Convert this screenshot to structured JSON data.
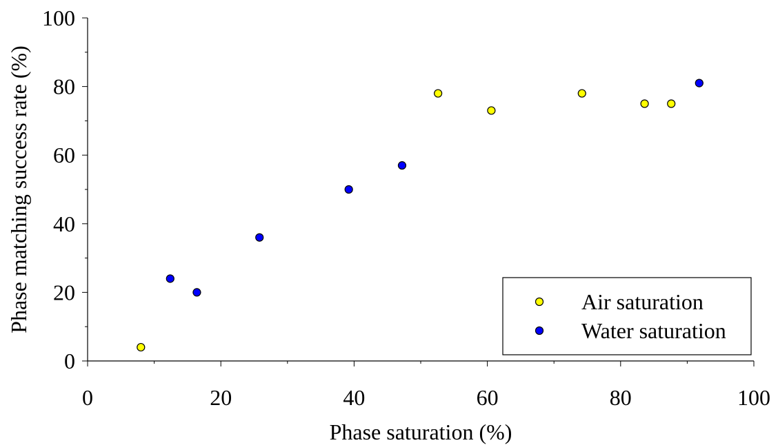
{
  "chart_data": {
    "type": "scatter",
    "title": "",
    "xlabel": "Phase saturation (%)",
    "ylabel": "Phase matching success rate (%)",
    "xlim": [
      0,
      100
    ],
    "ylim": [
      0,
      100
    ],
    "xticks": [
      "0",
      "20",
      "40",
      "60",
      "80",
      "100"
    ],
    "yticks": [
      "0",
      "20",
      "40",
      "60",
      "80",
      "100"
    ],
    "grid": false,
    "legend_position": "bottom-right",
    "series": [
      {
        "name": "Air saturation",
        "color": "#ffff00",
        "points": [
          {
            "x": 8,
            "y": 4
          },
          {
            "x": 52.6,
            "y": 78
          },
          {
            "x": 60.6,
            "y": 73
          },
          {
            "x": 74.2,
            "y": 78
          },
          {
            "x": 83.6,
            "y": 75
          },
          {
            "x": 87.6,
            "y": 75
          }
        ]
      },
      {
        "name": "Water saturation",
        "color": "#0000ff",
        "points": [
          {
            "x": 12.4,
            "y": 24
          },
          {
            "x": 16.4,
            "y": 20
          },
          {
            "x": 25.8,
            "y": 36
          },
          {
            "x": 39.2,
            "y": 50
          },
          {
            "x": 47.2,
            "y": 57
          },
          {
            "x": 91.8,
            "y": 81
          }
        ]
      }
    ]
  }
}
